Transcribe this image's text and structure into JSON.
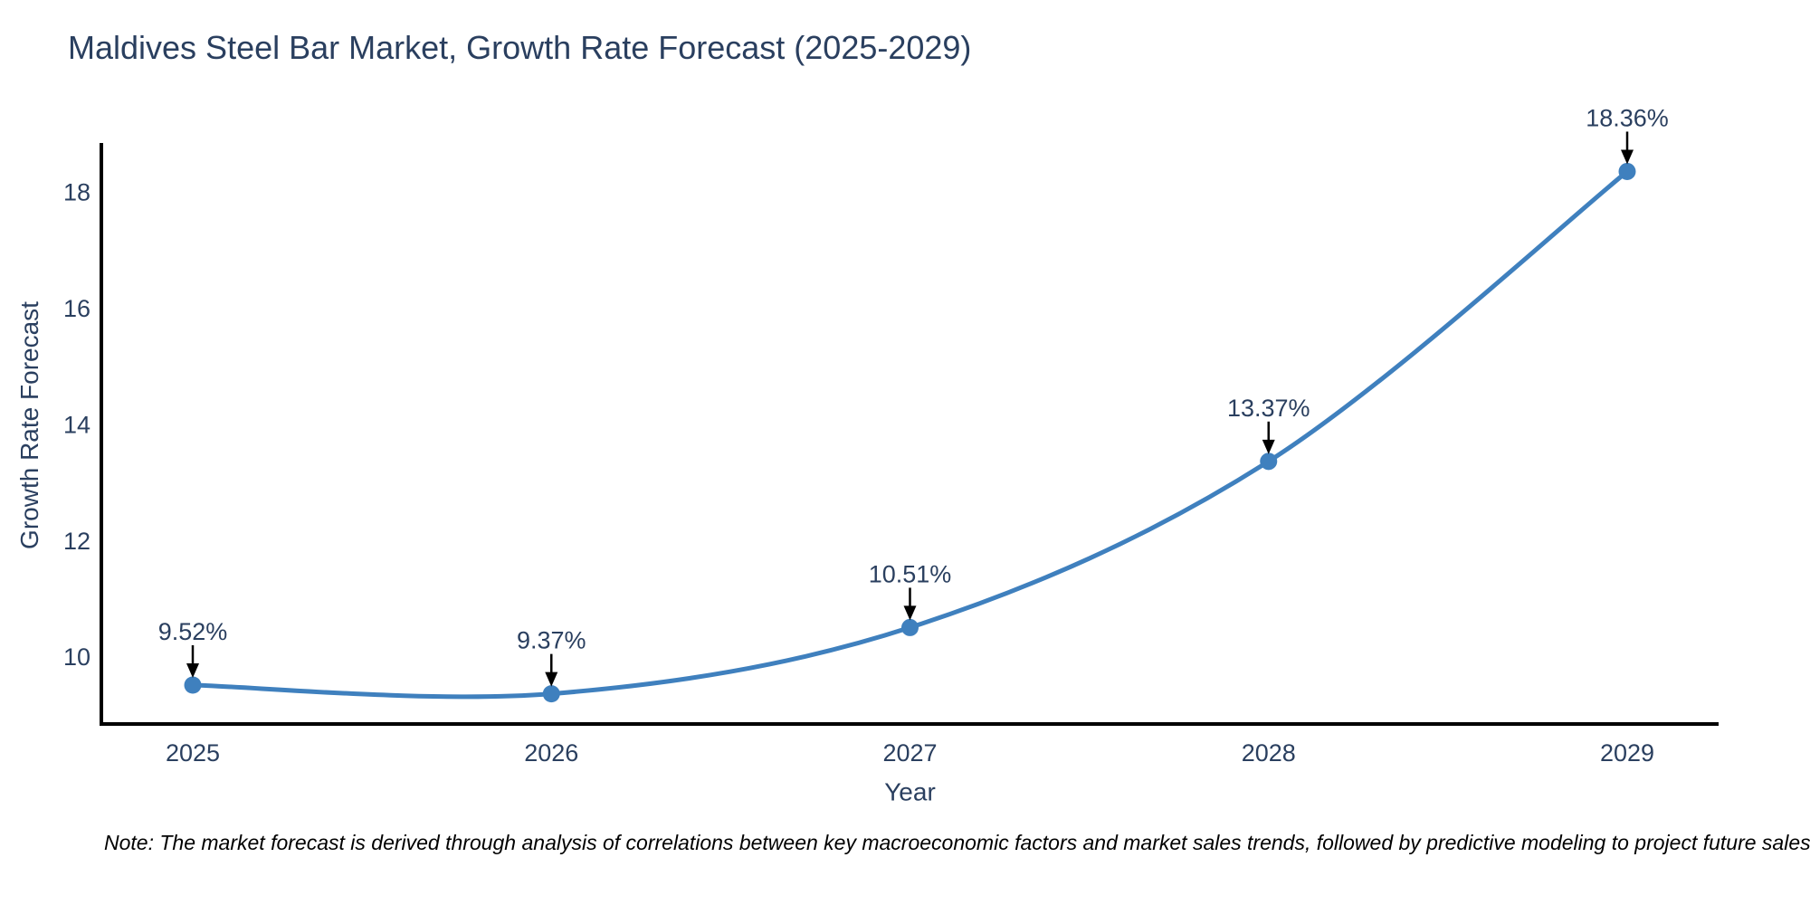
{
  "figure": {
    "note": "Note: The market forecast is derived through analysis of correlations between key macroeconomic factors and market sales trends, followed by predictive modeling to project future sales"
  },
  "chart_data": {
    "type": "line",
    "title": "Maldives Steel Bar Market, Growth Rate Forecast (2025-2029)",
    "xlabel": "Year",
    "ylabel": "Growth Rate Forecast",
    "x": [
      2025,
      2026,
      2027,
      2028,
      2029
    ],
    "values": [
      9.52,
      9.37,
      10.51,
      13.37,
      18.36
    ],
    "point_labels": [
      "9.52%",
      "9.37%",
      "10.51%",
      "13.37%",
      "18.36%"
    ],
    "yticks": [
      10,
      12,
      14,
      16,
      18
    ],
    "ylim": [
      8.85,
      18.85
    ],
    "line_shape": "spline",
    "grid": false,
    "legend": "none",
    "colors": {
      "line": "#3f80be",
      "marker": "#3f80be",
      "axis": "#000000",
      "text": "#2a3f5f",
      "annotation_text": "#2a3f5f",
      "annotation_arrow": "#000000",
      "background": "#ffffff"
    }
  }
}
